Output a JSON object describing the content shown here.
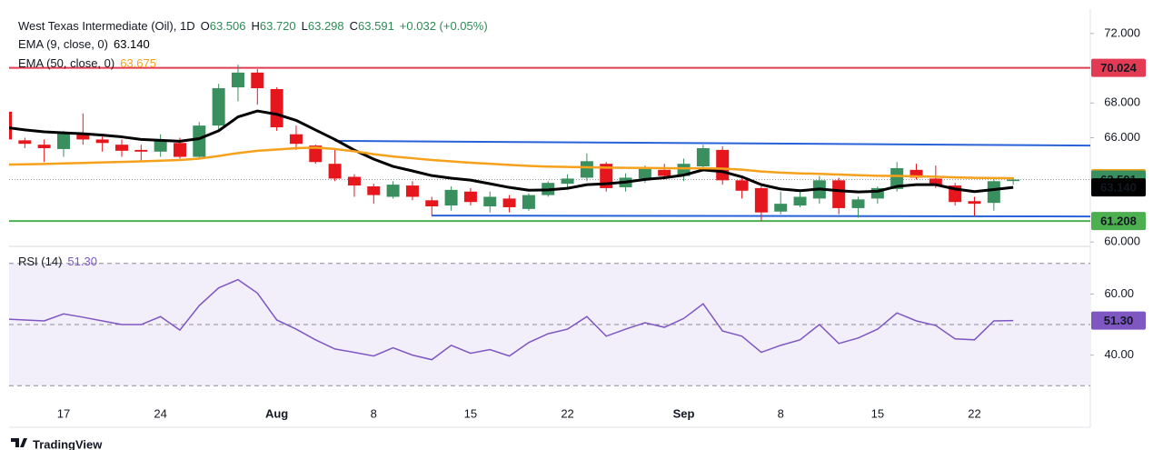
{
  "header": {
    "title": "West Texas Intermediate (Oil), 1D",
    "ohlc": [
      {
        "key": "O",
        "value": "63.506"
      },
      {
        "key": "H",
        "value": "63.720"
      },
      {
        "key": "L",
        "value": "63.298"
      },
      {
        "key": "C",
        "value": "63.591"
      }
    ],
    "change": "+0.032 (+0.05%)"
  },
  "chart_data": [
    {
      "type": "candlestick",
      "categories": [
        null,
        null,
        null,
        "17",
        null,
        null,
        null,
        null,
        "24",
        null,
        null,
        null,
        null,
        null,
        "Aug",
        null,
        null,
        null,
        null,
        "8",
        null,
        null,
        null,
        null,
        "15",
        null,
        null,
        null,
        null,
        "22",
        null,
        null,
        null,
        null,
        null,
        "Sep",
        null,
        null,
        null,
        null,
        "8",
        null,
        null,
        null,
        null,
        "15",
        null,
        null,
        null,
        null,
        "22",
        null,
        null
      ],
      "open": [
        67.5,
        65.85,
        65.6,
        65.35,
        66.2,
        65.9,
        65.6,
        65.3,
        65.2,
        65.7,
        64.9,
        66.7,
        68.9,
        69.75,
        68.8,
        66.2,
        65.55,
        64.5,
        63.75,
        63.2,
        62.6,
        63.25,
        62.4,
        62.1,
        62.9,
        62.05,
        62.5,
        61.9,
        62.7,
        63.35,
        63.7,
        64.5,
        63.15,
        63.65,
        64.15,
        63.8,
        64.35,
        65.3,
        63.55,
        63.1,
        61.75,
        62.1,
        62.5,
        63.55,
        61.95,
        62.5,
        63.05,
        64.15,
        63.65,
        63.25,
        62.35,
        62.25,
        63.506
      ],
      "high": [
        67.6,
        66.0,
        65.9,
        66.4,
        67.4,
        66.2,
        65.9,
        65.6,
        66.2,
        66.0,
        66.9,
        69.1,
        70.2,
        69.95,
        68.9,
        66.7,
        65.6,
        65.4,
        63.9,
        63.35,
        63.5,
        63.5,
        62.6,
        63.2,
        63.1,
        62.9,
        62.7,
        62.8,
        63.5,
        63.9,
        65.1,
        64.6,
        63.95,
        64.4,
        64.5,
        64.8,
        65.6,
        65.5,
        63.7,
        63.2,
        62.9,
        63.0,
        63.8,
        63.7,
        62.6,
        63.2,
        64.6,
        64.5,
        64.4,
        63.4,
        62.6,
        63.7,
        63.72
      ],
      "low": [
        65.6,
        65.4,
        64.6,
        64.9,
        65.6,
        65.2,
        64.9,
        64.6,
        64.9,
        64.8,
        64.8,
        66.5,
        68.1,
        67.9,
        66.4,
        65.3,
        64.5,
        63.5,
        62.6,
        62.2,
        62.5,
        62.4,
        61.5,
        61.8,
        62.1,
        61.7,
        61.7,
        61.8,
        62.6,
        63.1,
        63.5,
        62.9,
        62.9,
        63.4,
        63.6,
        63.5,
        64.1,
        63.3,
        62.5,
        61.2,
        61.6,
        62.0,
        62.2,
        61.6,
        61.4,
        62.2,
        62.9,
        63.6,
        63.1,
        62.1,
        61.5,
        61.8,
        63.298
      ],
      "close": [
        65.9,
        65.65,
        65.4,
        66.25,
        65.9,
        65.7,
        65.25,
        65.2,
        65.85,
        64.9,
        66.7,
        68.85,
        69.75,
        68.85,
        66.6,
        65.65,
        64.6,
        63.65,
        63.25,
        62.7,
        63.3,
        62.6,
        62.05,
        63.0,
        62.3,
        62.6,
        62.0,
        62.7,
        63.4,
        63.65,
        64.65,
        63.1,
        63.7,
        64.2,
        63.8,
        64.5,
        65.4,
        63.55,
        62.95,
        61.7,
        62.2,
        62.6,
        63.55,
        61.95,
        62.45,
        63.1,
        64.25,
        63.7,
        63.25,
        62.3,
        62.2,
        63.5,
        63.591
      ],
      "up_color": "#3a8f5e",
      "down_color": "#e5171d",
      "lines": [
        {
          "name": "EMA (9, close, 0)",
          "color": "#000000",
          "last_label": "63.140",
          "values": [
            66.6,
            66.45,
            66.34,
            66.28,
            66.23,
            66.15,
            66.05,
            65.9,
            65.85,
            65.8,
            65.95,
            66.4,
            67.2,
            67.54,
            67.35,
            67.0,
            66.45,
            65.9,
            65.29,
            64.77,
            64.35,
            64.09,
            63.82,
            63.67,
            63.56,
            63.35,
            63.14,
            62.98,
            63.0,
            63.09,
            63.3,
            63.35,
            63.45,
            63.6,
            63.7,
            63.85,
            64.15,
            64.05,
            63.75,
            63.3,
            63.05,
            62.95,
            63.05,
            62.95,
            62.88,
            62.92,
            63.2,
            63.3,
            63.3,
            63.05,
            62.9,
            63.02,
            63.14
          ]
        },
        {
          "name": "EMA (50, close, 0)",
          "color": "#f5a11c",
          "values": [
            64.45,
            64.47,
            64.49,
            64.52,
            64.55,
            64.58,
            64.61,
            64.64,
            64.68,
            64.72,
            64.8,
            64.95,
            65.12,
            65.25,
            65.32,
            65.4,
            65.43,
            65.35,
            65.22,
            65.05,
            64.92,
            64.82,
            64.72,
            64.64,
            64.56,
            64.5,
            64.44,
            64.38,
            64.34,
            64.32,
            64.3,
            64.28,
            64.27,
            64.26,
            64.25,
            64.24,
            64.24,
            64.22,
            64.16,
            64.06,
            63.99,
            63.95,
            63.92,
            63.88,
            63.84,
            63.81,
            63.8,
            63.78,
            63.76,
            63.72,
            63.69,
            63.68,
            63.675
          ]
        }
      ],
      "levels": [
        {
          "value": 70.024,
          "color": "#e33b53"
        },
        {
          "value": 61.208,
          "color": "#4caf50"
        }
      ],
      "trendlines": [
        {
          "x": [
            17,
            56
          ],
          "y": [
            65.82,
            65.55
          ],
          "color": "#2962d8"
        },
        {
          "x": [
            22,
            56
          ],
          "y": [
            61.52,
            61.47
          ],
          "color": "#2962d8"
        }
      ],
      "ylim": [
        59.8,
        73.3
      ],
      "yticks": [
        {
          "value": 60,
          "label": "60.000"
        },
        {
          "value": 66,
          "label": "66.000"
        },
        {
          "value": 68,
          "label": "68.000"
        },
        {
          "value": 72,
          "label": "72.000"
        }
      ]
    },
    {
      "type": "line",
      "series": [
        {
          "name": "RSI (14)",
          "color": "#7e57c2",
          "last_label": "51.30",
          "values": [
            51.8,
            51.5,
            51.2,
            53.5,
            52.4,
            51.2,
            50.0,
            50.0,
            52.6,
            48.2,
            56.2,
            62.0,
            64.7,
            60.3,
            51.5,
            48.5,
            45.0,
            42.0,
            40.9,
            39.7,
            42.4,
            40.0,
            38.5,
            43.2,
            40.6,
            41.8,
            39.7,
            44.1,
            47.0,
            48.5,
            52.6,
            46.2,
            48.5,
            50.6,
            49.1,
            52.0,
            56.8,
            47.9,
            46.2,
            40.9,
            43.2,
            45.0,
            50.0,
            43.8,
            45.6,
            48.5,
            53.8,
            51.2,
            49.7,
            45.3,
            45.0,
            51.2,
            51.3
          ]
        }
      ],
      "levels": [
        70,
        50,
        30
      ],
      "ylim": [
        25.3,
        75.3
      ],
      "yticks": [
        {
          "value": 40,
          "label": "40.00"
        },
        {
          "value": 60,
          "label": "60.00"
        }
      ]
    }
  ],
  "footer": {
    "brand": "TradingView"
  }
}
